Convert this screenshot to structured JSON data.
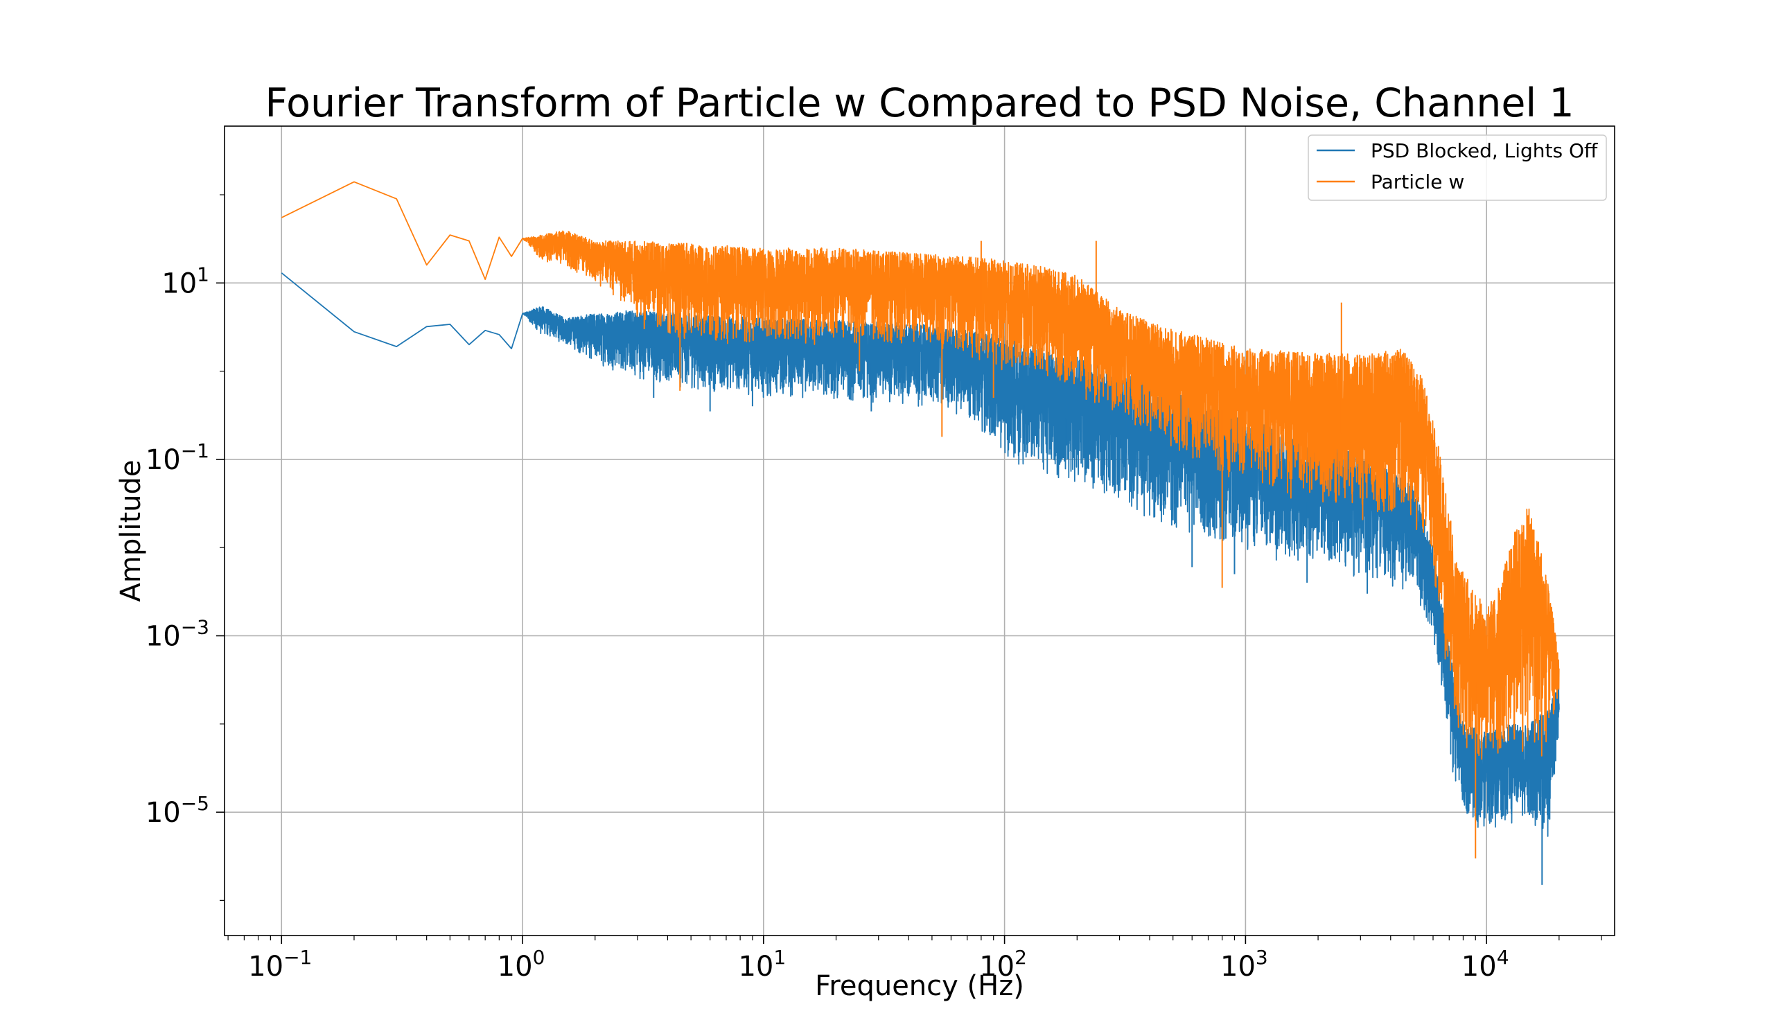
{
  "chart_data": {
    "type": "line",
    "title": "Fourier Transform of Particle w Compared to PSD Noise, Channel 1",
    "xlabel": "Frequency (Hz)",
    "ylabel": "Amplitude",
    "xscale": "log",
    "yscale": "log",
    "xlim": [
      0.058,
      34000
    ],
    "ylim": [
      4e-07,
      600
    ],
    "xticks": [
      {
        "value": 0.1,
        "base": "10",
        "exp": "−1"
      },
      {
        "value": 1,
        "base": "10",
        "exp": "0"
      },
      {
        "value": 10,
        "base": "10",
        "exp": "1"
      },
      {
        "value": 100,
        "base": "10",
        "exp": "2"
      },
      {
        "value": 1000,
        "base": "10",
        "exp": "3"
      },
      {
        "value": 10000,
        "base": "10",
        "exp": "4"
      }
    ],
    "yticks": [
      {
        "value": 10,
        "base": "10",
        "exp": "1"
      },
      {
        "value": 0.1,
        "base": "10",
        "exp": "−1"
      },
      {
        "value": 0.001,
        "base": "10",
        "exp": "−3"
      },
      {
        "value": 1e-05,
        "base": "10",
        "exp": "−5"
      }
    ],
    "grid": true,
    "legend_position": "top-right",
    "series": [
      {
        "name": "PSD Blocked, Lights Off",
        "color": "#1f77b4",
        "envelope": [
          {
            "x": 0.1,
            "upper": 13,
            "lower": 13
          },
          {
            "x": 0.2,
            "upper": 2.8,
            "lower": 2.8
          },
          {
            "x": 0.3,
            "upper": 1.9,
            "lower": 1.9
          },
          {
            "x": 0.4,
            "upper": 3.2,
            "lower": 3.2
          },
          {
            "x": 0.5,
            "upper": 3.4,
            "lower": 3.4
          },
          {
            "x": 0.6,
            "upper": 2.0,
            "lower": 2.0
          },
          {
            "x": 0.7,
            "upper": 2.9,
            "lower": 2.9
          },
          {
            "x": 0.8,
            "upper": 2.6,
            "lower": 2.6
          },
          {
            "x": 0.9,
            "upper": 1.8,
            "lower": 1.8
          },
          {
            "x": 1.0,
            "upper": 4.5,
            "lower": 4.5
          },
          {
            "x": 1.2,
            "upper": 5.5,
            "lower": 2.5
          },
          {
            "x": 1.5,
            "upper": 4.0,
            "lower": 2.0
          },
          {
            "x": 2.0,
            "upper": 4.5,
            "lower": 1.2
          },
          {
            "x": 3.0,
            "upper": 5.0,
            "lower": 0.8
          },
          {
            "x": 5.0,
            "upper": 4.5,
            "lower": 0.6
          },
          {
            "x": 10,
            "upper": 4.0,
            "lower": 0.5
          },
          {
            "x": 20,
            "upper": 3.8,
            "lower": 0.45
          },
          {
            "x": 40,
            "upper": 3.5,
            "lower": 0.4
          },
          {
            "x": 70,
            "upper": 3.0,
            "lower": 0.3
          },
          {
            "x": 100,
            "upper": 2.5,
            "lower": 0.1
          },
          {
            "x": 150,
            "upper": 1.8,
            "lower": 0.06
          },
          {
            "x": 200,
            "upper": 1.5,
            "lower": 0.05
          },
          {
            "x": 300,
            "upper": 1.0,
            "lower": 0.03
          },
          {
            "x": 500,
            "upper": 0.6,
            "lower": 0.015
          },
          {
            "x": 1000,
            "upper": 0.3,
            "lower": 0.008
          },
          {
            "x": 2000,
            "upper": 0.15,
            "lower": 0.006
          },
          {
            "x": 3000,
            "upper": 0.12,
            "lower": 0.004
          },
          {
            "x": 5000,
            "upper": 0.05,
            "lower": 0.003
          },
          {
            "x": 6000,
            "upper": 0.01,
            "lower": 0.001
          },
          {
            "x": 7000,
            "upper": 0.0008,
            "lower": 4e-05
          },
          {
            "x": 8000,
            "upper": 0.0001,
            "lower": 8e-06
          },
          {
            "x": 10000,
            "upper": 8e-05,
            "lower": 6e-06
          },
          {
            "x": 12000,
            "upper": 0.0001,
            "lower": 7e-06
          },
          {
            "x": 15000,
            "upper": 0.0001,
            "lower": 8e-06
          },
          {
            "x": 18000,
            "upper": 0.00015,
            "lower": 4e-06
          },
          {
            "x": 20000,
            "upper": 0.0003,
            "lower": 8e-05
          }
        ],
        "spikes": [
          {
            "x": 3.5,
            "y": 0.5
          },
          {
            "x": 6.0,
            "y": 0.35
          },
          {
            "x": 9.0,
            "y": 0.4
          },
          {
            "x": 28,
            "y": 0.35
          },
          {
            "x": 120,
            "y": 0.15
          },
          {
            "x": 180,
            "y": 0.1
          },
          {
            "x": 300,
            "y": 0.05
          },
          {
            "x": 600,
            "y": 0.006
          },
          {
            "x": 900,
            "y": 0.005
          },
          {
            "x": 1800,
            "y": 0.004
          },
          {
            "x": 3200,
            "y": 0.003
          },
          {
            "x": 17000,
            "y": 1.5e-06
          }
        ]
      },
      {
        "name": "Particle w",
        "color": "#ff7f0e",
        "envelope": [
          {
            "x": 0.1,
            "upper": 55,
            "lower": 55
          },
          {
            "x": 0.2,
            "upper": 140,
            "lower": 140
          },
          {
            "x": 0.3,
            "upper": 90,
            "lower": 90
          },
          {
            "x": 0.4,
            "upper": 16,
            "lower": 16
          },
          {
            "x": 0.5,
            "upper": 35,
            "lower": 35
          },
          {
            "x": 0.6,
            "upper": 30,
            "lower": 30
          },
          {
            "x": 0.7,
            "upper": 11,
            "lower": 11
          },
          {
            "x": 0.8,
            "upper": 33,
            "lower": 33
          },
          {
            "x": 0.9,
            "upper": 20,
            "lower": 20
          },
          {
            "x": 1.0,
            "upper": 32,
            "lower": 32
          },
          {
            "x": 1.2,
            "upper": 35,
            "lower": 18
          },
          {
            "x": 1.5,
            "upper": 40,
            "lower": 15
          },
          {
            "x": 2.0,
            "upper": 30,
            "lower": 10
          },
          {
            "x": 3.0,
            "upper": 30,
            "lower": 4
          },
          {
            "x": 5.0,
            "upper": 28,
            "lower": 2
          },
          {
            "x": 10,
            "upper": 25,
            "lower": 2
          },
          {
            "x": 20,
            "upper": 25,
            "lower": 2
          },
          {
            "x": 40,
            "upper": 22,
            "lower": 2
          },
          {
            "x": 70,
            "upper": 20,
            "lower": 1.5
          },
          {
            "x": 100,
            "upper": 18,
            "lower": 1
          },
          {
            "x": 150,
            "upper": 15,
            "lower": 0.8
          },
          {
            "x": 200,
            "upper": 12,
            "lower": 0.5
          },
          {
            "x": 300,
            "upper": 5,
            "lower": 0.3
          },
          {
            "x": 500,
            "upper": 3,
            "lower": 0.1
          },
          {
            "x": 1000,
            "upper": 1.8,
            "lower": 0.05
          },
          {
            "x": 2000,
            "upper": 1.6,
            "lower": 0.03
          },
          {
            "x": 3000,
            "upper": 1.6,
            "lower": 0.02
          },
          {
            "x": 4500,
            "upper": 1.8,
            "lower": 0.02
          },
          {
            "x": 5500,
            "upper": 0.8,
            "lower": 0.01
          },
          {
            "x": 6500,
            "upper": 0.1,
            "lower": 0.001
          },
          {
            "x": 7500,
            "upper": 0.008,
            "lower": 8e-05
          },
          {
            "x": 9000,
            "upper": 0.003,
            "lower": 3e-05
          },
          {
            "x": 10000,
            "upper": 0.0022,
            "lower": 3e-05
          },
          {
            "x": 11000,
            "upper": 0.003,
            "lower": 3e-05
          },
          {
            "x": 13000,
            "upper": 0.015,
            "lower": 4e-05
          },
          {
            "x": 15000,
            "upper": 0.03,
            "lower": 4e-05
          },
          {
            "x": 17000,
            "upper": 0.01,
            "lower": 3e-05
          },
          {
            "x": 19000,
            "upper": 0.0015,
            "lower": 0.0001
          },
          {
            "x": 20000,
            "upper": 0.0005,
            "lower": 0.0002
          }
        ],
        "spikes": [
          {
            "x": 3.2,
            "y": 3.0
          },
          {
            "x": 4.5,
            "y": 0.6
          },
          {
            "x": 25,
            "y": 1.0
          },
          {
            "x": 55,
            "y": 0.18
          },
          {
            "x": 80,
            "y": 30
          },
          {
            "x": 90,
            "y": 0.5
          },
          {
            "x": 240,
            "y": 30
          },
          {
            "x": 800,
            "y": 0.0035
          },
          {
            "x": 2500,
            "y": 6
          },
          {
            "x": 9000,
            "y": 3e-06
          }
        ]
      }
    ]
  }
}
